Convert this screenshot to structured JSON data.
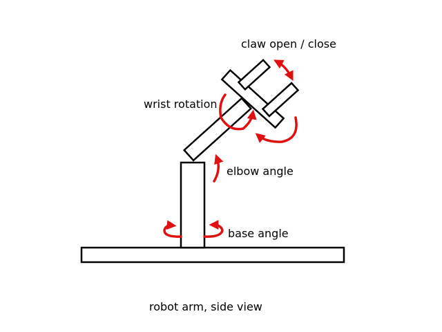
{
  "labels": {
    "claw": "claw open / close",
    "wrist": "wrist rotation",
    "elbow": "elbow angle",
    "base": "base angle",
    "caption": "robot arm, side view"
  },
  "colors": {
    "line": "#000000",
    "arrow": "#e01010",
    "background": "#ffffff"
  }
}
